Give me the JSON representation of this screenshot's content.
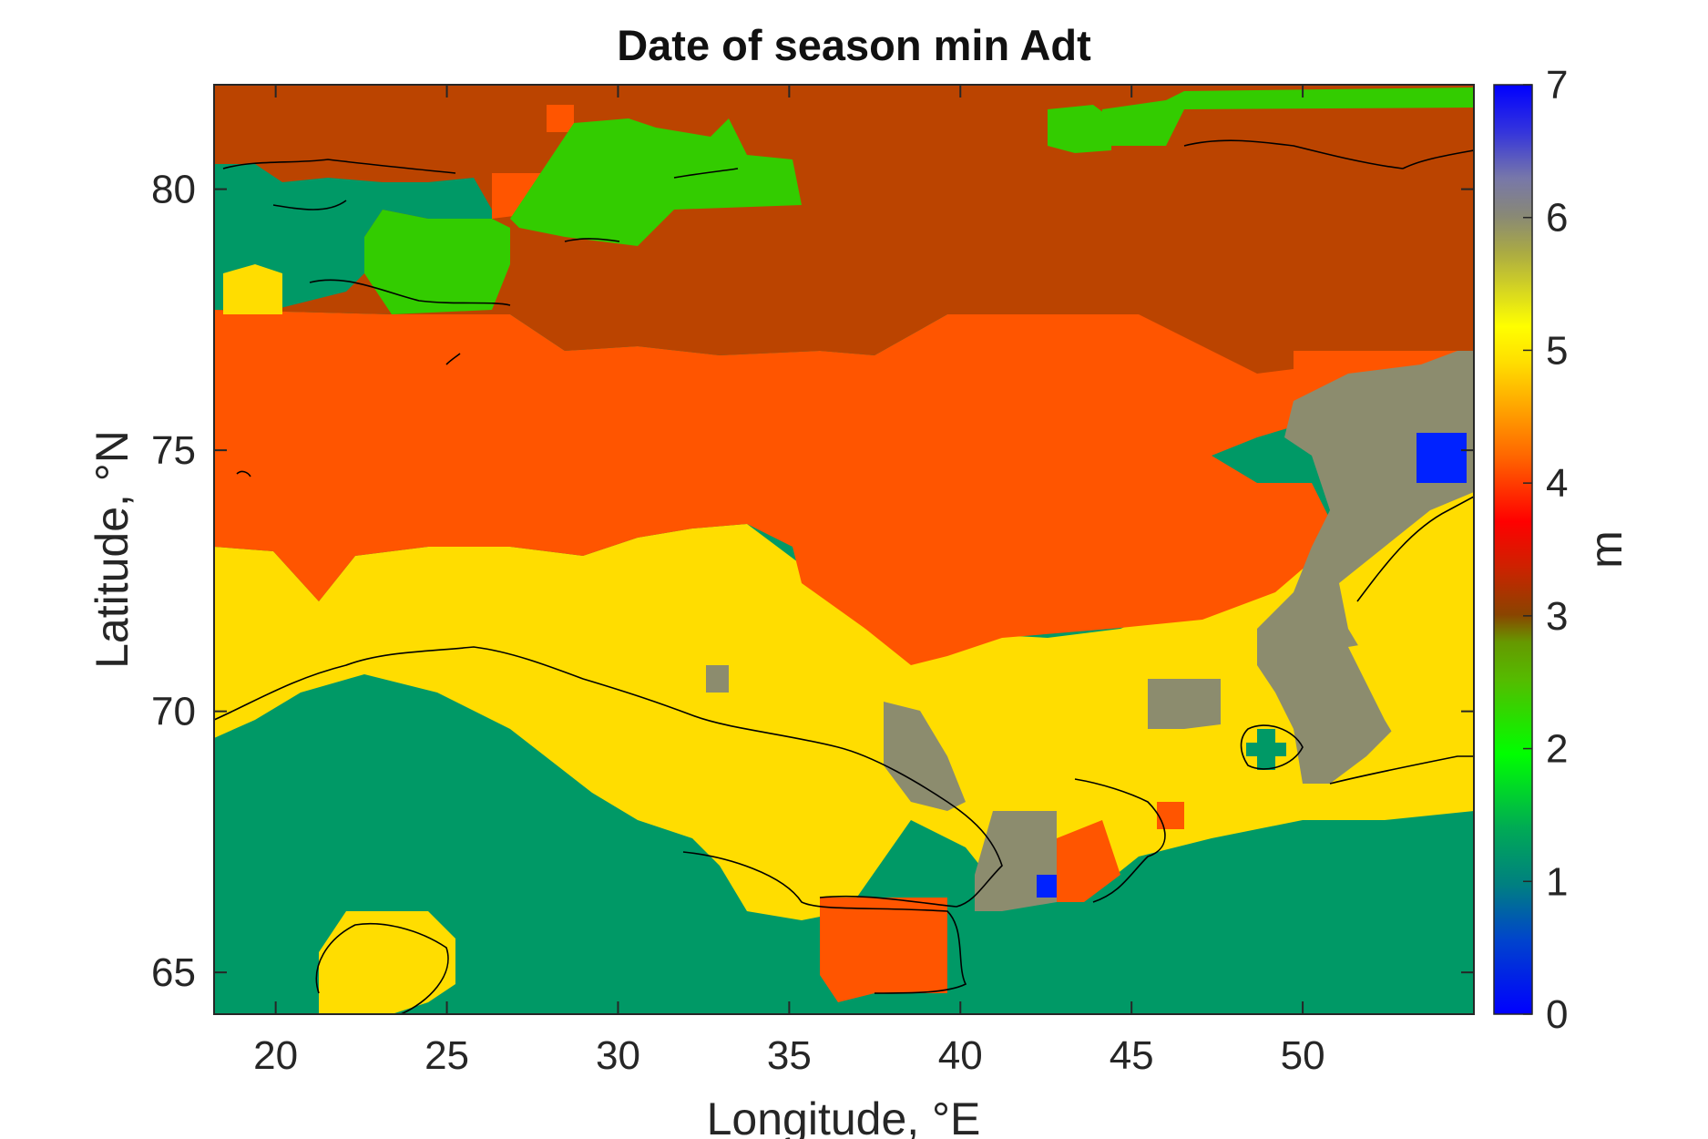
{
  "title": "Date of season min Adt",
  "xlabel": "Longitude, °E",
  "ylabel": "Latitude, °N",
  "colorbar": {
    "unit": "m",
    "range": [
      0,
      7
    ],
    "ticks": [
      "0",
      "1",
      "2",
      "3",
      "4",
      "5",
      "6",
      "7"
    ],
    "colormap": "blue-cyan-green-yellow-orange-red-brown-grey-blue (parula-like custom)"
  },
  "chart_data": {
    "type": "heatmap",
    "projection": "longitude/latitude map of the Barents Sea and Kola/Scandinavia region",
    "xlim": [
      18.2,
      55
    ],
    "ylim": [
      64.2,
      82
    ],
    "xticks": [
      "20",
      "25",
      "30",
      "35",
      "40",
      "45",
      "50"
    ],
    "yticks": [
      "65",
      "70",
      "75",
      "80"
    ],
    "category_colors": {
      "1": "#009966",
      "2": "#33cc00",
      "3": "#bb4400",
      "4": "#ff5500",
      "5": "#ffdd00",
      "6": "#8c8c6e",
      "7": "#0022ff"
    },
    "regions_approx": [
      {
        "value": 3,
        "area": "northern band, lat ~77–82 (except west and central-north patches)"
      },
      {
        "value": 2,
        "area": "north-west patches near Svalbard, lat ~78–81, lon ~24–36 and lon ~44–55 near 81.5"
      },
      {
        "value": 4,
        "area": "central band, lat ~73–77.5, extending south to ~71 between lon 35 and 48"
      },
      {
        "value": 5,
        "area": "southern band, lat ~68–73, and patch near lon 20, lat 65"
      },
      {
        "value": 6,
        "area": "grey patches east, lon ~38–55, lat ~66–76"
      },
      {
        "value": 7,
        "area": "small spots near lon 54, lat 75 and lon 42.5, lat 66.5"
      },
      {
        "value": 1,
        "area": "land and coastal south, lat < ~69, and north-west Svalbard coast"
      }
    ]
  }
}
